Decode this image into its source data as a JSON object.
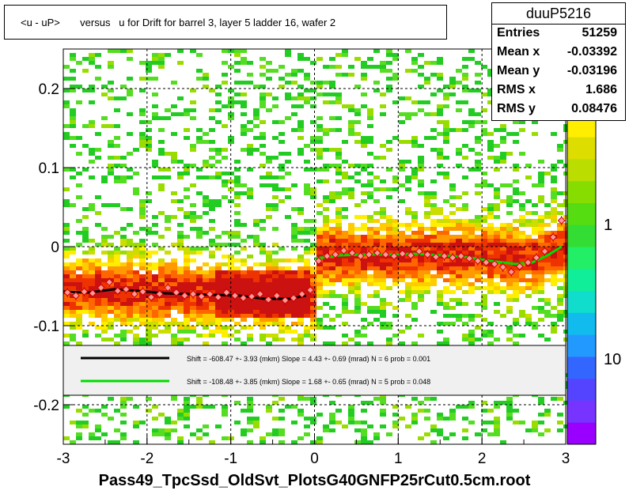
{
  "title": "<u - uP>       versus   u for Drift for barrel 3, layer 5 ladder 16, wafer 2",
  "file_label": "Pass49_TpcSsd_OldSvt_PlotsG40GNFP25rCut0.5cm.root",
  "stats": {
    "name": "duuP5216",
    "rows": [
      {
        "key": "Entries",
        "value": "51259"
      },
      {
        "key": "Mean x",
        "value": "-0.03392"
      },
      {
        "key": "Mean y",
        "value": "-0.03196"
      },
      {
        "key": "RMS x",
        "value": "1.686"
      },
      {
        "key": "RMS y",
        "value": "0.08476"
      }
    ]
  },
  "legend": {
    "entries": [
      {
        "color": "#000000",
        "text": "Shift =  -608.47 +- 3.93 (mkm) Slope =     4.43 +- 0.69 (mrad)  N = 6 prob = 0.001"
      },
      {
        "color": "#00dd00",
        "text": "Shift =  -108.48 +- 3.85 (mkm) Slope =     1.68 +- 0.65 (mrad)  N = 5 prob = 0.048"
      }
    ]
  },
  "colorbar": {
    "labels": [
      "1",
      "10"
    ]
  },
  "chart_data": {
    "type": "heatmap",
    "xlim": [
      -3,
      3
    ],
    "ylim": [
      -0.25,
      0.25
    ],
    "xticks": [
      "-3",
      "-2",
      "-1",
      "0",
      "1",
      "2",
      "3"
    ],
    "yticks": [
      "-0.2",
      "-0.1",
      "0",
      "0.1",
      "0.2"
    ],
    "xtick_values": [
      -3,
      -2,
      -1,
      0,
      1,
      2,
      3
    ],
    "ytick_values": [
      -0.2,
      -0.1,
      0,
      0.1,
      0.2
    ],
    "grid": true,
    "profile_points": [
      {
        "x": -2.95,
        "y": -0.058
      },
      {
        "x": -2.85,
        "y": -0.062
      },
      {
        "x": -2.75,
        "y": -0.057
      },
      {
        "x": -2.65,
        "y": -0.059
      },
      {
        "x": -2.55,
        "y": -0.052
      },
      {
        "x": -2.45,
        "y": -0.045
      },
      {
        "x": -2.35,
        "y": -0.056
      },
      {
        "x": -2.25,
        "y": -0.054
      },
      {
        "x": -2.15,
        "y": -0.06
      },
      {
        "x": -2.05,
        "y": -0.057
      },
      {
        "x": -1.95,
        "y": -0.064
      },
      {
        "x": -1.85,
        "y": -0.06
      },
      {
        "x": -1.75,
        "y": -0.052
      },
      {
        "x": -1.65,
        "y": -0.058
      },
      {
        "x": -1.55,
        "y": -0.062
      },
      {
        "x": -1.45,
        "y": -0.06
      },
      {
        "x": -1.35,
        "y": -0.063
      },
      {
        "x": -1.25,
        "y": -0.06
      },
      {
        "x": -1.15,
        "y": -0.064
      },
      {
        "x": -1.05,
        "y": -0.058
      },
      {
        "x": -0.95,
        "y": -0.062
      },
      {
        "x": -0.85,
        "y": -0.065
      },
      {
        "x": -0.75,
        "y": -0.063
      },
      {
        "x": -0.65,
        "y": -0.06
      },
      {
        "x": -0.55,
        "y": -0.067
      },
      {
        "x": -0.45,
        "y": -0.062
      },
      {
        "x": -0.35,
        "y": -0.068
      },
      {
        "x": -0.25,
        "y": -0.065
      },
      {
        "x": -0.15,
        "y": -0.06
      },
      {
        "x": -0.05,
        "y": -0.055
      },
      {
        "x": 0.05,
        "y": -0.018
      },
      {
        "x": 0.15,
        "y": -0.012
      },
      {
        "x": 0.25,
        "y": -0.01
      },
      {
        "x": 0.35,
        "y": -0.005
      },
      {
        "x": 0.45,
        "y": -0.008
      },
      {
        "x": 0.55,
        "y": -0.012
      },
      {
        "x": 0.65,
        "y": -0.01
      },
      {
        "x": 0.75,
        "y": -0.008
      },
      {
        "x": 0.85,
        "y": -0.01
      },
      {
        "x": 0.95,
        "y": -0.012
      },
      {
        "x": 1.05,
        "y": -0.009
      },
      {
        "x": 1.15,
        "y": -0.011
      },
      {
        "x": 1.25,
        "y": -0.006
      },
      {
        "x": 1.35,
        "y": -0.01
      },
      {
        "x": 1.45,
        "y": -0.013
      },
      {
        "x": 1.55,
        "y": -0.012
      },
      {
        "x": 1.65,
        "y": -0.014
      },
      {
        "x": 1.75,
        "y": -0.012
      },
      {
        "x": 1.85,
        "y": -0.015
      },
      {
        "x": 1.95,
        "y": -0.018
      },
      {
        "x": 2.05,
        "y": -0.02
      },
      {
        "x": 2.15,
        "y": -0.022
      },
      {
        "x": 2.25,
        "y": -0.026
      },
      {
        "x": 2.35,
        "y": -0.032
      },
      {
        "x": 2.45,
        "y": -0.025
      },
      {
        "x": 2.55,
        "y": -0.02
      },
      {
        "x": 2.65,
        "y": -0.014
      },
      {
        "x": 2.75,
        "y": -0.006
      },
      {
        "x": 2.85,
        "y": 0.012
      },
      {
        "x": 2.95,
        "y": 0.033
      }
    ],
    "fit_left": [
      {
        "x": -3.0,
        "y": -0.057
      },
      {
        "x": -2.7,
        "y": -0.058
      },
      {
        "x": -2.4,
        "y": -0.054
      },
      {
        "x": -2.1,
        "y": -0.056
      },
      {
        "x": -1.8,
        "y": -0.059
      },
      {
        "x": -1.5,
        "y": -0.06
      },
      {
        "x": -1.2,
        "y": -0.061
      },
      {
        "x": -0.9,
        "y": -0.062
      },
      {
        "x": -0.6,
        "y": -0.066
      },
      {
        "x": -0.3,
        "y": -0.066
      },
      {
        "x": -0.1,
        "y": -0.062
      }
    ],
    "fit_right": [
      {
        "x": 0.0,
        "y": -0.015
      },
      {
        "x": 0.3,
        "y": -0.011
      },
      {
        "x": 0.6,
        "y": -0.01
      },
      {
        "x": 0.9,
        "y": -0.01
      },
      {
        "x": 1.2,
        "y": -0.009
      },
      {
        "x": 1.5,
        "y": -0.011
      },
      {
        "x": 1.8,
        "y": -0.013
      },
      {
        "x": 2.1,
        "y": -0.018
      },
      {
        "x": 2.4,
        "y": -0.022
      },
      {
        "x": 2.6,
        "y": -0.02
      },
      {
        "x": 2.8,
        "y": -0.01
      },
      {
        "x": 2.95,
        "y": 0.0
      }
    ]
  }
}
